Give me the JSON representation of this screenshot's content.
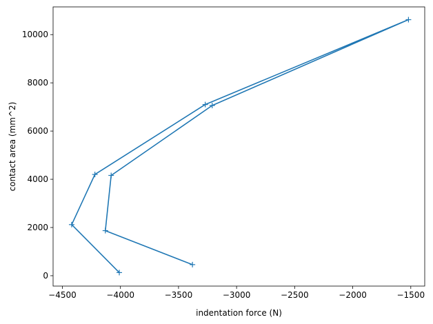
{
  "chart_data": {
    "type": "line",
    "title": "",
    "xlabel": "indentation force (N)",
    "ylabel": "contact area (mm^2)",
    "xlim": [
      -4580,
      -1380
    ],
    "ylim": [
      -430,
      11150
    ],
    "xticks": [
      -4500,
      -4000,
      -3500,
      -3000,
      -2500,
      -2000,
      -1500
    ],
    "xtick_labels": [
      "−4500",
      "−4000",
      "−3500",
      "−3000",
      "−2500",
      "−2000",
      "−1500"
    ],
    "yticks": [
      0,
      2000,
      4000,
      6000,
      8000,
      10000
    ],
    "ytick_labels": [
      "0",
      "2000",
      "4000",
      "6000",
      "8000",
      "10000"
    ],
    "grid": false,
    "marker": "plus",
    "color": "#1f77b4",
    "series": [
      {
        "x": [
          -4010,
          -4420,
          -4220,
          -3270,
          -1520,
          -3210,
          -4080,
          -4130,
          -3380
        ],
        "y": [
          130,
          2120,
          4200,
          7100,
          10620,
          7060,
          4160,
          1870,
          460
        ]
      }
    ]
  }
}
